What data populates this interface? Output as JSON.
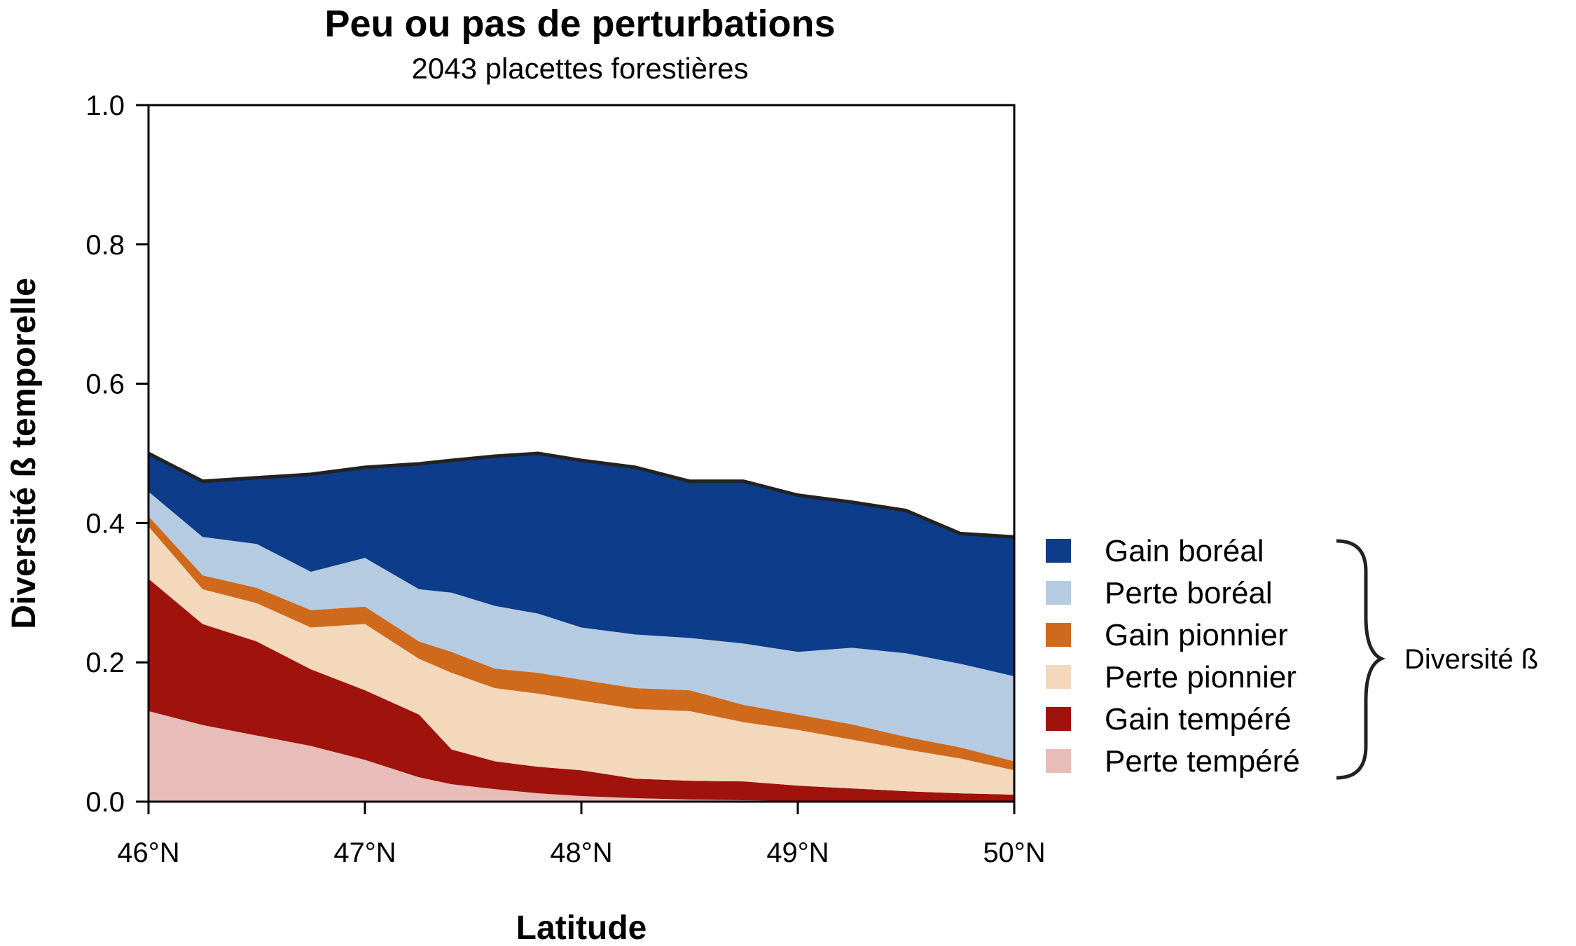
{
  "chart_data": {
    "type": "area",
    "stacked": true,
    "title": "Peu ou pas de perturbations",
    "subtitle": "2043 placettes forestières",
    "xlabel": "Latitude",
    "ylabel": "Diversité ß temporelle",
    "xlim": [
      46,
      50
    ],
    "ylim": [
      0,
      1
    ],
    "x_ticks": [
      {
        "value": 46,
        "label": "46°N"
      },
      {
        "value": 47,
        "label": "47°N"
      },
      {
        "value": 48,
        "label": "48°N"
      },
      {
        "value": 49,
        "label": "49°N"
      },
      {
        "value": 50,
        "label": "50°N"
      }
    ],
    "y_ticks": [
      {
        "value": 0.0,
        "label": "0.0"
      },
      {
        "value": 0.2,
        "label": "0.2"
      },
      {
        "value": 0.4,
        "label": "0.4"
      },
      {
        "value": 0.6,
        "label": "0.6"
      },
      {
        "value": 0.8,
        "label": "0.8"
      },
      {
        "value": 1.0,
        "label": "1.0"
      }
    ],
    "x": [
      46.0,
      46.25,
      46.5,
      46.75,
      47.0,
      47.25,
      47.4,
      47.6,
      47.8,
      48.0,
      48.25,
      48.5,
      48.75,
      49.0,
      49.25,
      49.5,
      49.75,
      50.0
    ],
    "series": [
      {
        "name": "Perte tempéré",
        "color": "#e8bcb8",
        "values": [
          0.13,
          0.11,
          0.095,
          0.08,
          0.06,
          0.035,
          0.025,
          0.018,
          0.012,
          0.008,
          0.005,
          0.003,
          0.002,
          0.001,
          0.001,
          0.0,
          0.0,
          0.0
        ]
      },
      {
        "name": "Gain tempéré",
        "color": "#a0120c",
        "values": [
          0.19,
          0.145,
          0.135,
          0.11,
          0.1,
          0.09,
          0.05,
          0.04,
          0.038,
          0.037,
          0.028,
          0.027,
          0.027,
          0.022,
          0.018,
          0.015,
          0.012,
          0.01
        ]
      },
      {
        "name": "Perte pionnier",
        "color": "#f3d8bc",
        "values": [
          0.075,
          0.05,
          0.055,
          0.06,
          0.095,
          0.08,
          0.11,
          0.105,
          0.105,
          0.1,
          0.1,
          0.1,
          0.085,
          0.08,
          0.07,
          0.06,
          0.05,
          0.035
        ]
      },
      {
        "name": "Gain pionnier",
        "color": "#cf6a1c",
        "values": [
          0.015,
          0.02,
          0.022,
          0.025,
          0.025,
          0.025,
          0.03,
          0.028,
          0.03,
          0.03,
          0.03,
          0.03,
          0.025,
          0.022,
          0.022,
          0.018,
          0.016,
          0.013
        ]
      },
      {
        "name": "Perte boréal",
        "color": "#b5cbe2",
        "values": [
          0.035,
          0.055,
          0.063,
          0.055,
          0.07,
          0.075,
          0.085,
          0.09,
          0.085,
          0.075,
          0.077,
          0.075,
          0.088,
          0.09,
          0.11,
          0.12,
          0.12,
          0.122
        ]
      },
      {
        "name": "Gain boréal",
        "color": "#0c3c8a",
        "values": [
          0.055,
          0.08,
          0.095,
          0.14,
          0.13,
          0.18,
          0.19,
          0.215,
          0.23,
          0.24,
          0.24,
          0.225,
          0.233,
          0.225,
          0.209,
          0.205,
          0.187,
          0.2
        ]
      }
    ],
    "legend": {
      "placement": "right",
      "group_label": "Diversité ß",
      "items": [
        {
          "label": "Gain boréal",
          "color": "#0c3c8a"
        },
        {
          "label": "Perte boréal",
          "color": "#b5cbe2"
        },
        {
          "label": "Gain pionnier",
          "color": "#cf6a1c"
        },
        {
          "label": "Perte pionnier",
          "color": "#f3d8bc"
        },
        {
          "label": "Gain tempéré",
          "color": "#a0120c"
        },
        {
          "label": "Perte tempéré",
          "color": "#e8bcb8"
        }
      ]
    },
    "total_line_color": "#222222",
    "grid": false
  }
}
